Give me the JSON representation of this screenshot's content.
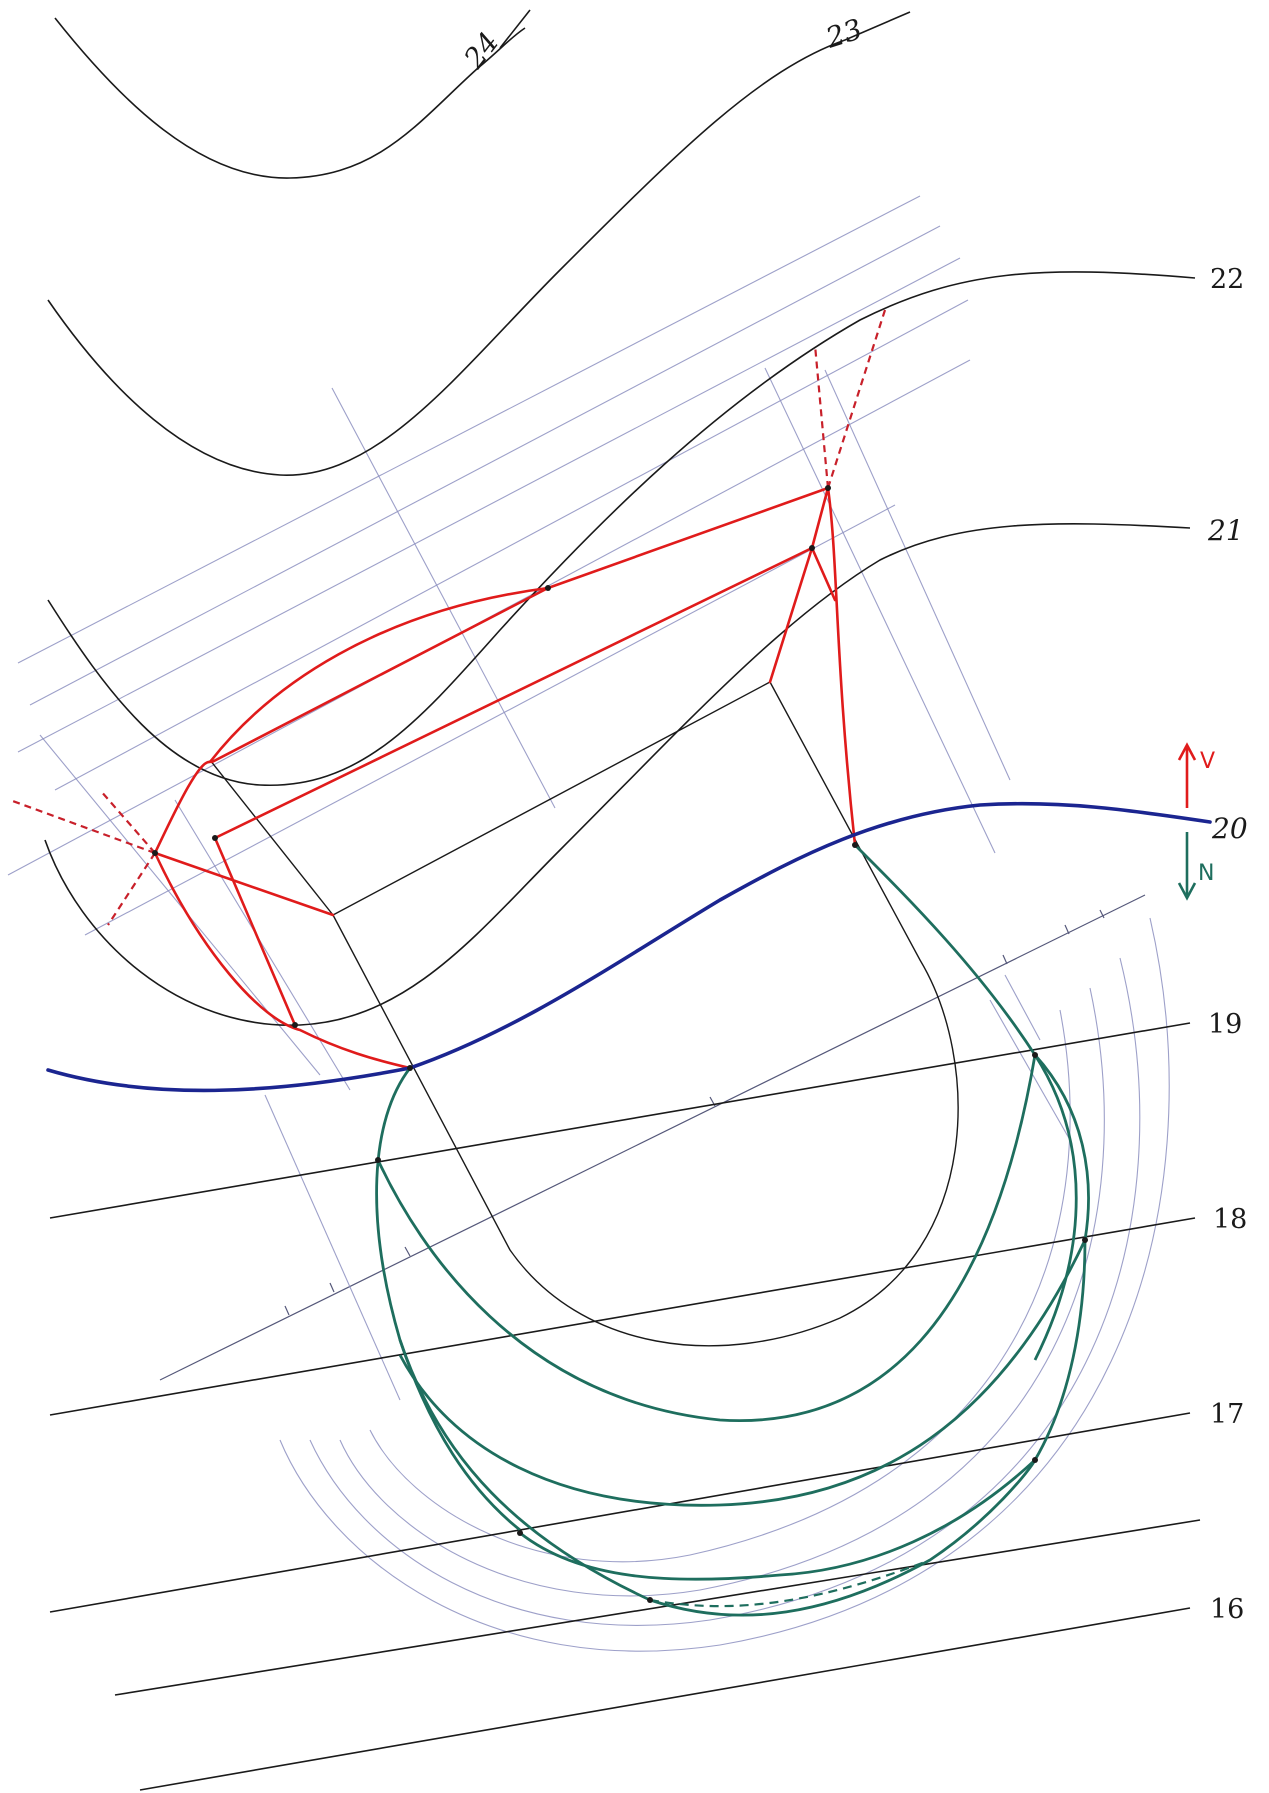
{
  "contour_labels": {
    "c24": "24",
    "c23": "23",
    "c22": "22",
    "c21": "21",
    "c20": "20",
    "c19": "19",
    "c18": "18",
    "c17": "17",
    "c16": "16"
  },
  "legend": {
    "up_letter": "V",
    "down_letter": "N"
  },
  "colors": {
    "contour": "#1a1a1a",
    "cut_lines": "#e01b1b",
    "fill_lines": "#1e6e5e",
    "zero_line": "#1b2590",
    "construction": "#8c8fbf"
  }
}
